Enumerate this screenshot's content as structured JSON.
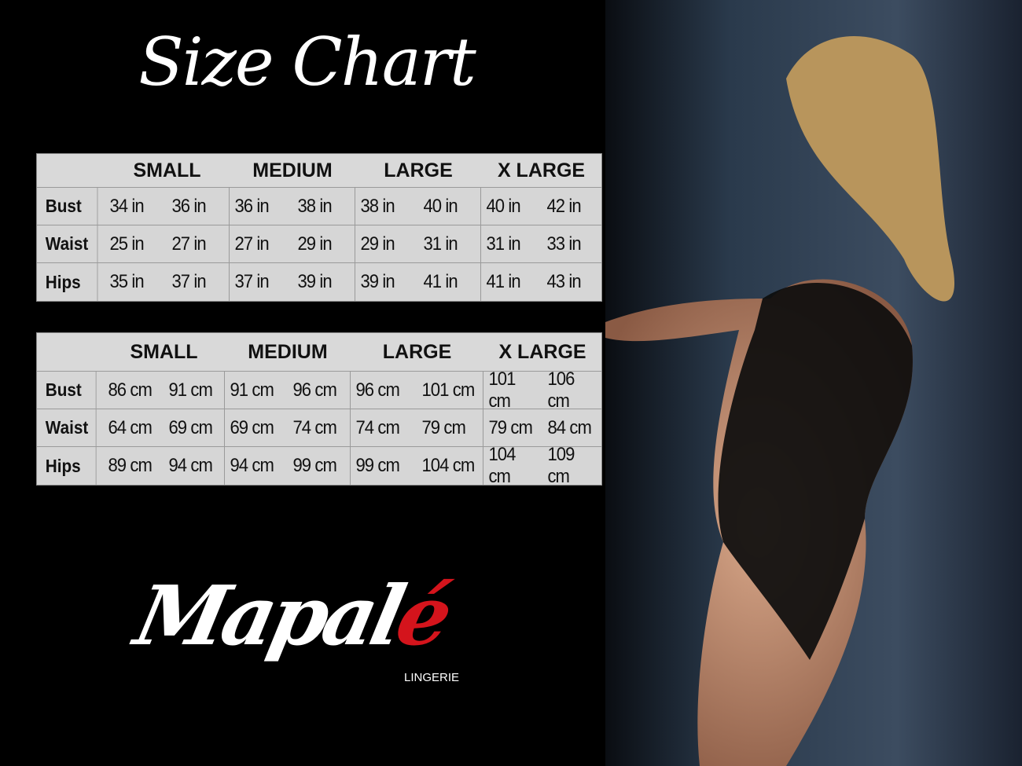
{
  "title": "Size Chart",
  "sizes": [
    "SMALL",
    "MEDIUM",
    "LARGE",
    "X LARGE"
  ],
  "inches_table": {
    "rows": [
      {
        "label": "Bust",
        "values": [
          "34 in",
          "36 in",
          "36 in",
          "38 in",
          "38 in",
          "40 in",
          "40 in",
          "42 in"
        ]
      },
      {
        "label": "Waist",
        "values": [
          "25 in",
          "27 in",
          "27 in",
          "29 in",
          "29 in",
          "31 in",
          "31 in",
          "33 in"
        ]
      },
      {
        "label": "Hips",
        "values": [
          "35 in",
          "37 in",
          "37 in",
          "39 in",
          "39 in",
          "41 in",
          "41 in",
          "43 in"
        ]
      }
    ]
  },
  "cm_table": {
    "rows": [
      {
        "label": "Bust",
        "values": [
          "86 cm",
          "91 cm",
          "91 cm",
          "96 cm",
          "96 cm",
          "101 cm",
          "101 cm",
          "106 cm"
        ]
      },
      {
        "label": "Waist",
        "values": [
          "64 cm",
          "69 cm",
          "69 cm",
          "74 cm",
          "74 cm",
          "79  cm",
          "79 cm",
          "84 cm"
        ]
      },
      {
        "label": "Hips",
        "values": [
          "89 cm",
          "94 cm",
          "94 cm",
          "99 cm",
          "99 cm",
          "104 cm",
          "104 cm",
          "109 cm"
        ]
      }
    ]
  },
  "logo": {
    "main": "Mapalé",
    "sub": "LINGERIE"
  },
  "colors": {
    "table_bg": "#d6d6d6",
    "logo_accent": "#d4141c",
    "background": "#000000"
  }
}
